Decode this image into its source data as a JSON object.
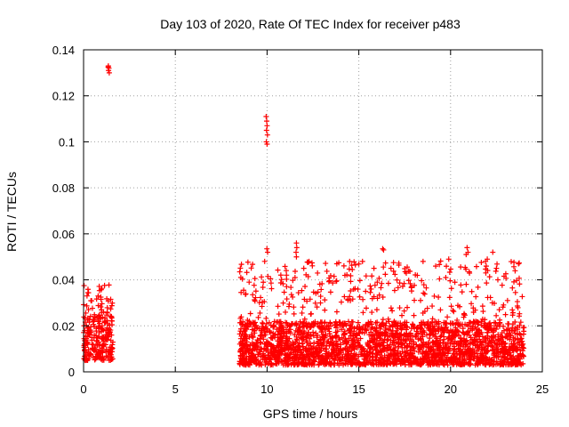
{
  "chart_data": {
    "type": "scatter",
    "title": "Day 103 of 2020, Rate Of TEC Index for receiver p483",
    "xlabel": "GPS time / hours",
    "ylabel": "ROTI / TECUs",
    "xlim": [
      0,
      25
    ],
    "ylim": [
      0,
      0.14
    ],
    "xticks": [
      0,
      5,
      10,
      15,
      20,
      25
    ],
    "yticks": [
      0,
      0.02,
      0.04,
      0.06,
      0.08,
      0.1,
      0.12,
      0.14
    ],
    "xtick_labels": [
      "0",
      "5",
      "10",
      "15",
      "20",
      "25"
    ],
    "ytick_labels": [
      "0",
      "0.02",
      "0.04",
      "0.06",
      "0.08",
      "0.1",
      "0.12",
      "0.14"
    ],
    "grid": true,
    "marker": "+",
    "color": "#ff0000",
    "series": [
      {
        "name": "ROTI",
        "segments": [
          {
            "x_range": [
              0.0,
              1.6
            ],
            "y_base": [
              0.005,
              0.025
            ],
            "y_max": 0.041,
            "density": 260
          },
          {
            "x_range": [
              8.5,
              24.0
            ],
            "y_base": [
              0.003,
              0.022
            ],
            "y_max": 0.055,
            "density": 2600
          }
        ],
        "outliers": [
          {
            "x": 1.35,
            "y": 0.133
          },
          {
            "x": 1.38,
            "y": 0.132
          },
          {
            "x": 1.36,
            "y": 0.131
          },
          {
            "x": 1.4,
            "y": 0.13
          },
          {
            "x": 1.34,
            "y": 0.1325
          },
          {
            "x": 9.95,
            "y": 0.111
          },
          {
            "x": 9.98,
            "y": 0.109
          },
          {
            "x": 10.0,
            "y": 0.107
          },
          {
            "x": 9.97,
            "y": 0.105
          },
          {
            "x": 10.02,
            "y": 0.103
          },
          {
            "x": 9.96,
            "y": 0.1
          },
          {
            "x": 10.0,
            "y": 0.099
          },
          {
            "x": 9.99,
            "y": 0.0535
          },
          {
            "x": 10.03,
            "y": 0.052
          },
          {
            "x": 11.6,
            "y": 0.056
          },
          {
            "x": 11.62,
            "y": 0.054
          },
          {
            "x": 11.58,
            "y": 0.052
          },
          {
            "x": 11.6,
            "y": 0.05
          },
          {
            "x": 16.3,
            "y": 0.0535
          },
          {
            "x": 16.35,
            "y": 0.053
          },
          {
            "x": 20.9,
            "y": 0.054
          },
          {
            "x": 20.95,
            "y": 0.052
          },
          {
            "x": 20.85,
            "y": 0.051
          },
          {
            "x": 22.3,
            "y": 0.052
          },
          {
            "x": 22.0,
            "y": 0.049
          },
          {
            "x": 19.9,
            "y": 0.049
          },
          {
            "x": 18.5,
            "y": 0.048
          },
          {
            "x": 15.2,
            "y": 0.048
          },
          {
            "x": 14.5,
            "y": 0.048
          },
          {
            "x": 13.8,
            "y": 0.047
          },
          {
            "x": 12.0,
            "y": 0.045
          },
          {
            "x": 23.7,
            "y": 0.047
          },
          {
            "x": 22.5,
            "y": 0.045
          }
        ]
      }
    ]
  }
}
